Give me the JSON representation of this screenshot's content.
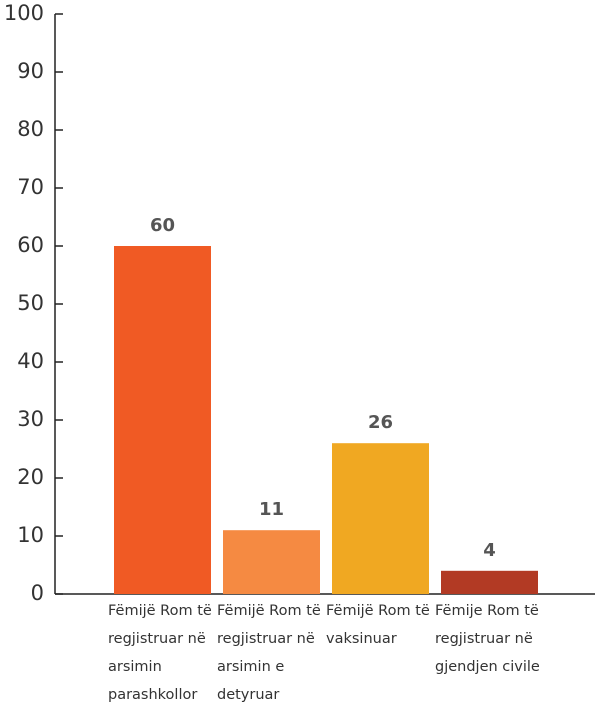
{
  "chart_data": {
    "type": "bar",
    "categories": [
      "Fëmijë Rom të regjistruar në arsimin parashkollor",
      "Fëmijë Rom të regjistruar në arsimin e detyruar",
      "Fëmijë Rom të vaksinuar",
      "Fëmije Rom të regjistruar në gjendjen civile"
    ],
    "values": [
      60,
      11,
      26,
      4
    ],
    "colors": [
      "#f05a24",
      "#f58a42",
      "#f0a822",
      "#b23a24"
    ],
    "ylim": [
      0,
      100
    ],
    "yticks": [
      0,
      10,
      20,
      30,
      40,
      50,
      60,
      70,
      80,
      90,
      100
    ]
  }
}
